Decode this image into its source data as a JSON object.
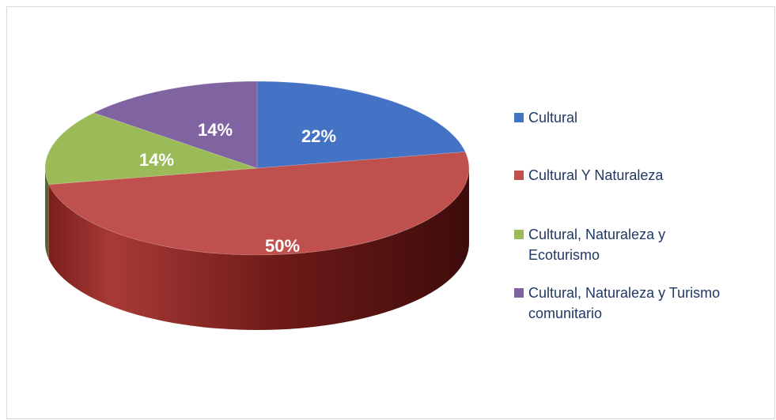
{
  "chart_data": {
    "type": "pie",
    "labels": [
      "Cultural",
      "Cultural Y Naturaleza",
      "Cultural, Naturaleza y Ecoturismo",
      "Cultural, Naturaleza y Turismo comunitario"
    ],
    "values": [
      22,
      50,
      14,
      14
    ],
    "value_labels": [
      "22%",
      "50%",
      "14%",
      "14%"
    ],
    "colors": [
      "#4472c4",
      "#c0504d",
      "#9bbb59",
      "#8064a2"
    ],
    "legend_position": "right",
    "style": "3d"
  }
}
